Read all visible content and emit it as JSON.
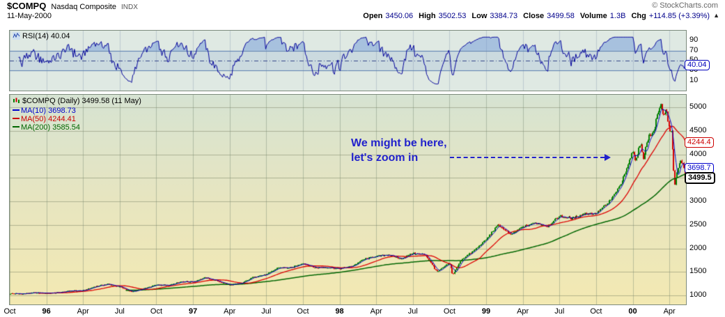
{
  "header": {
    "symbol": "$COMPQ",
    "name": "Nasdaq Composite",
    "exchange": "INDX",
    "credit": "© StockCharts.com",
    "date": "11-May-2000",
    "quote_items": [
      {
        "label": "Open",
        "value": "3450.06"
      },
      {
        "label": "High",
        "value": "3502.53"
      },
      {
        "label": "Low",
        "value": "3384.73"
      },
      {
        "label": "Close",
        "value": "3499.58"
      },
      {
        "label": "Volume",
        "value": "1.3B"
      },
      {
        "label": "Chg",
        "value": "+114.85 (+3.39%)"
      }
    ],
    "direction_icon": "▲"
  },
  "rsi_panel": {
    "label": "RSI(14) 40.04",
    "axis_values": [
      90,
      70,
      50,
      30,
      10
    ],
    "value_badge": {
      "text": "40.04",
      "color": "#0000bb",
      "value": 40.04
    }
  },
  "price_panel": {
    "title": "$COMPQ (Daily) 3499.58 (11 May)",
    "legend": [
      {
        "label": "MA(10) 3698.73",
        "color": "#0000cc"
      },
      {
        "label": "MA(50) 4244.41",
        "color": "#cc0000"
      },
      {
        "label": "MA(200) 3585.54",
        "color": "#006600"
      }
    ],
    "annotation": {
      "line1": "We might be here,",
      "line2": "let's zoom in"
    },
    "axis_values": [
      5000,
      4500,
      4000,
      3500,
      3000,
      2500,
      2000,
      1500,
      1000
    ],
    "badges": [
      {
        "text": "4244.4",
        "color": "#cc0000",
        "value": 4244.41,
        "bold": false
      },
      {
        "text": "3698.7",
        "color": "#0000cc",
        "value": 3698.73,
        "bold": false
      },
      {
        "text": "3499.5",
        "color": "#000000",
        "value": 3499.58,
        "bold": true
      }
    ]
  },
  "x_axis": {
    "ticks": [
      {
        "m": 0,
        "label": "Oct",
        "bold": false
      },
      {
        "m": 3,
        "label": "96",
        "bold": true
      },
      {
        "m": 6,
        "label": "Apr",
        "bold": false
      },
      {
        "m": 9,
        "label": "Jul",
        "bold": false
      },
      {
        "m": 12,
        "label": "Oct",
        "bold": false
      },
      {
        "m": 15,
        "label": "97",
        "bold": true
      },
      {
        "m": 18,
        "label": "Apr",
        "bold": false
      },
      {
        "m": 21,
        "label": "Jul",
        "bold": false
      },
      {
        "m": 24,
        "label": "Oct",
        "bold": false
      },
      {
        "m": 27,
        "label": "98",
        "bold": true
      },
      {
        "m": 30,
        "label": "Apr",
        "bold": false
      },
      {
        "m": 33,
        "label": "Jul",
        "bold": false
      },
      {
        "m": 36,
        "label": "Oct",
        "bold": false
      },
      {
        "m": 39,
        "label": "99",
        "bold": true
      },
      {
        "m": 42,
        "label": "Apr",
        "bold": false
      },
      {
        "m": 45,
        "label": "Jul",
        "bold": false
      },
      {
        "m": 48,
        "label": "Oct",
        "bold": false
      },
      {
        "m": 51,
        "label": "00",
        "bold": true
      },
      {
        "m": 54,
        "label": "Apr",
        "bold": false
      }
    ]
  },
  "chart_data": {
    "type": "candlestick",
    "symbol": "$COMPQ",
    "title": "$COMPQ (Daily) 3499.58 (11 May)",
    "date": "11-May-2000",
    "last": {
      "open": 3450.06,
      "high": 3502.53,
      "low": 3384.73,
      "close": 3499.58,
      "volume": "1.3B",
      "change": "+114.85",
      "change_pct": "+3.39%"
    },
    "indicators": {
      "rsi14": 40.04,
      "ma10": 3698.73,
      "ma50": 4244.41,
      "ma200": 3585.54
    },
    "ylim": [
      810,
      5270
    ],
    "y_gridlines": [
      1000,
      1500,
      2000,
      2500,
      3000,
      3500,
      4000,
      4500,
      5000
    ],
    "rsi": {
      "period": 14,
      "last": 40.04,
      "ylim": [
        -10,
        110
      ],
      "lines": [
        30,
        50,
        70
      ],
      "axis": [
        90,
        70,
        50,
        30,
        10
      ]
    },
    "x_unit": "months since Oct-1995",
    "x_max": 55.36,
    "anchors": {
      "t_months": [
        0,
        1,
        2,
        3,
        4,
        5,
        6,
        7,
        8,
        9,
        10,
        11,
        12,
        13,
        14,
        15,
        16,
        17,
        18,
        19,
        20,
        21,
        22,
        23,
        24,
        25,
        26,
        27,
        28,
        29,
        30,
        31,
        32,
        33,
        34,
        35,
        36,
        36.27,
        37,
        38,
        39,
        40,
        41,
        42,
        43,
        44,
        45,
        46,
        47,
        48,
        49,
        50,
        51,
        51.2,
        51.43,
        51.68,
        51.9,
        52.13,
        52.36,
        52.6,
        52.82,
        53.06,
        53.29,
        53.52,
        53.74,
        53.97,
        54.2,
        54.43,
        54.67,
        54.9,
        55.13,
        55.33
      ],
      "close": [
        1044,
        1036,
        1059,
        1052,
        1060,
        1100,
        1101,
        1191,
        1243,
        1185,
        1081,
        1142,
        1227,
        1221,
        1292,
        1291,
        1380,
        1309,
        1222,
        1261,
        1400,
        1442,
        1594,
        1587,
        1686,
        1593,
        1601,
        1570,
        1619,
        1771,
        1836,
        1868,
        1779,
        1895,
        1872,
        1499,
        1694,
        1440,
        1771,
        1950,
        2193,
        2506,
        2288,
        2461,
        2543,
        2471,
        2686,
        2638,
        2739,
        2746,
        2966,
        3336,
        4069,
        3882,
        4064,
        4235,
        3887,
        4244,
        4395,
        4411,
        4590,
        4914,
        5048,
        4798,
        4963,
        4573,
        4446,
        3321,
        3643,
        3860,
        3816,
        3499.58
      ]
    },
    "overlays": [
      {
        "name": "MA(10)",
        "days": 10,
        "color": "#0000cc"
      },
      {
        "name": "MA(50)",
        "days": 50,
        "color": "#dd0000"
      },
      {
        "name": "MA(200)",
        "days": 200,
        "color": "#006600"
      }
    ],
    "colors": {
      "up": "#008000",
      "down": "#d40000",
      "rsi_line": "#000099",
      "annotation": "#2222cc"
    }
  }
}
